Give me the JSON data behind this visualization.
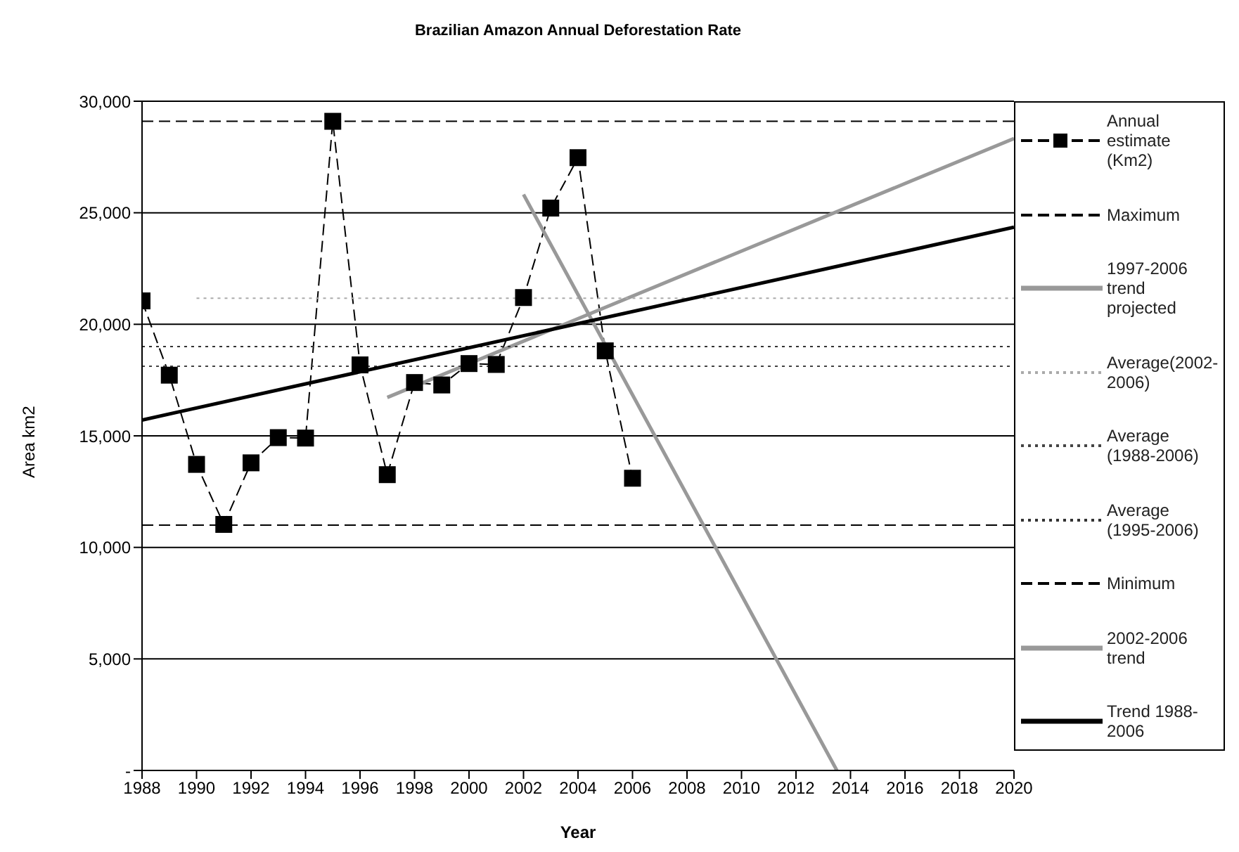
{
  "chart_data": {
    "type": "line",
    "title": "Brazilian Amazon Annual Deforestation Rate",
    "xlabel": "Year",
    "ylabel": "Area km2",
    "xlim": [
      1988,
      2020
    ],
    "xticks": [
      1988,
      1990,
      1992,
      1994,
      1996,
      1998,
      2000,
      2002,
      2004,
      2006,
      2008,
      2010,
      2012,
      2014,
      2016,
      2018,
      2020
    ],
    "ylim": [
      0,
      30000
    ],
    "yticks": [
      {
        "value": 0,
        "label": "-"
      },
      {
        "value": 5000,
        "label": "5,000"
      },
      {
        "value": 10000,
        "label": "10,000"
      },
      {
        "value": 15000,
        "label": "15,000"
      },
      {
        "value": 20000,
        "label": "20,000"
      },
      {
        "value": 25000,
        "label": "25,000"
      },
      {
        "value": 30000,
        "label": "30,000"
      }
    ],
    "grid": "y",
    "legend": "right",
    "series": [
      {
        "name": "Annual estimate (Km2)",
        "color": "#000000",
        "marker": "square",
        "line_style": "dashed",
        "x": [
          1988,
          1989,
          1990,
          1991,
          1992,
          1993,
          1994,
          1995,
          1996,
          1997,
          1998,
          1999,
          2000,
          2001,
          2002,
          2003,
          2004,
          2005,
          2006
        ],
        "values": [
          21050,
          17720,
          13720,
          11030,
          13790,
          14920,
          14900,
          29100,
          18180,
          13260,
          17390,
          17280,
          18240,
          18200,
          21200,
          25210,
          27470,
          18810,
          13100
        ]
      },
      {
        "name": "Maximum",
        "color": "#000000",
        "line_style": "dashed",
        "x": [
          1988,
          2020
        ],
        "values": [
          29100,
          29100
        ]
      },
      {
        "name": "1997-2006 trend projected",
        "color": "#999999",
        "line_style": "solid",
        "x": [
          1997,
          2020
        ],
        "values": [
          16720,
          28330
        ]
      },
      {
        "name": "Average(2002-2006)",
        "color": "#aaaaaa",
        "line_style": "dotted",
        "x": [
          1990,
          2020
        ],
        "values": [
          21170,
          21170
        ]
      },
      {
        "name": "Average (1988-2006)",
        "color": "#444444",
        "line_style": "dotted",
        "x": [
          1988,
          2020
        ],
        "values": [
          18120,
          18120
        ]
      },
      {
        "name": "Average (1995-2006)",
        "color": "#333333",
        "line_style": "dotted",
        "x": [
          1988,
          2020
        ],
        "values": [
          19000,
          19000
        ]
      },
      {
        "name": "Minimum",
        "color": "#000000",
        "line_style": "dashed",
        "x": [
          1988,
          2020
        ],
        "values": [
          11000,
          11000
        ]
      },
      {
        "name": "2002-2006 trend",
        "color": "#999999",
        "line_style": "solid",
        "x": [
          2002,
          2013.5
        ],
        "values": [
          25820,
          0
        ]
      },
      {
        "name": "Trend 1988-2006",
        "color": "#000000",
        "line_style": "solid",
        "x": [
          1988,
          2020
        ],
        "values": [
          15710,
          24350
        ]
      }
    ]
  }
}
